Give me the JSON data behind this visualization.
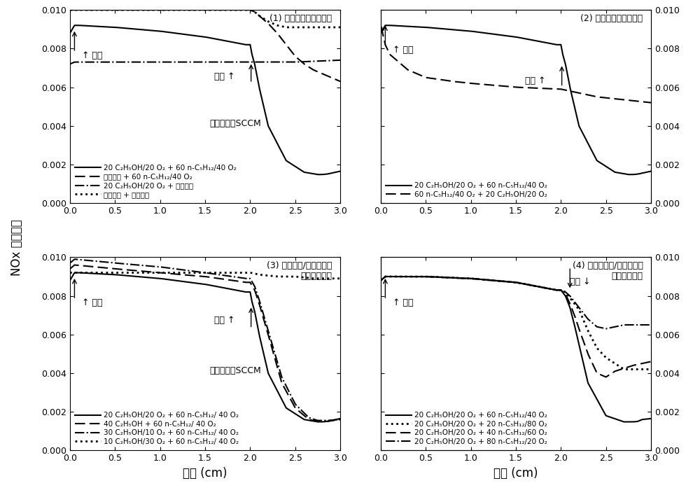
{
  "xlim": [
    0.0,
    3.0
  ],
  "ylim": [
    0.0,
    0.01
  ],
  "xticks": [
    0.0,
    0.5,
    1.0,
    1.5,
    2.0,
    2.5,
    3.0
  ],
  "yticks": [
    0.0,
    0.002,
    0.004,
    0.006,
    0.008,
    0.01
  ],
  "xlabel": "距离 (cm)",
  "ylabel": "NOx 摩尔分数",
  "flow_text": "流量单位：SCCM",
  "title1": "(1) 前后喷添加与否对比",
  "title2": "(2) 前后喷正置倒置对比",
  "title3_l1": "(3) 前喷乙醇/氧气当量比",
  "title3_l2": "变化情况对比",
  "title4_l1": "(4) 后喷正戊烷/氧气当量比",
  "title4_l2": "变化情况对比",
  "qian_pen": "↑ 前喷",
  "hou_pen_up": "后喷 ↑",
  "hou_pen_down": "后喷 ↓",
  "p1_leg0": "20 C₂H₅OH/20 O₂ + 60 n-C₅H₁₂/40 O₂",
  "p1_leg1": "前端不喷 + 60 n-C₅H₁₂/40 O₂",
  "p1_leg2": "20 C₂H₅OH/20 O₂ + 后端不喷",
  "p1_leg3": "前端不喷 + 后端不喷",
  "p2_leg0": "20 C₂H₅OH/20 O₂ + 60 n-C₅H₁₂/40 O₂",
  "p2_leg1": "60 n-C₅H₁₂/40 O₂ + 20 C₂H₅OH/20 O₂",
  "p3_leg0": "20 C₂H₅OH/20 O₂ + 60 n-C₅H₁₂/ 40 O₂",
  "p3_leg1": "40 C₂H₅OH + 60 n-C₅H₁₂/ 40 O₂",
  "p3_leg2": "30 C₂H₅OH/10 O₂ + 60 n-C₅H₁₂/ 40 O₂",
  "p3_leg3": "10 C₂H₅OH/30 O₂ + 60 n-C₅H₁₂/ 40 O₂",
  "p4_leg0": "20 C₂H₅OH/20 O₂ + 60 n-C₅H₁₂/40 O₂",
  "p4_leg1": "20 C₂H₅OH/20 O₂ + 20 n-C₅H₁₂/80 O₂",
  "p4_leg2": "20 C₂H₅OH/20 O₂ + 40 n-C₅H₁₂/60 O₂",
  "p4_leg3": "20 C₂H₅OH/20 O₂ + 80 n-C₅H₁₂/20 O₂"
}
